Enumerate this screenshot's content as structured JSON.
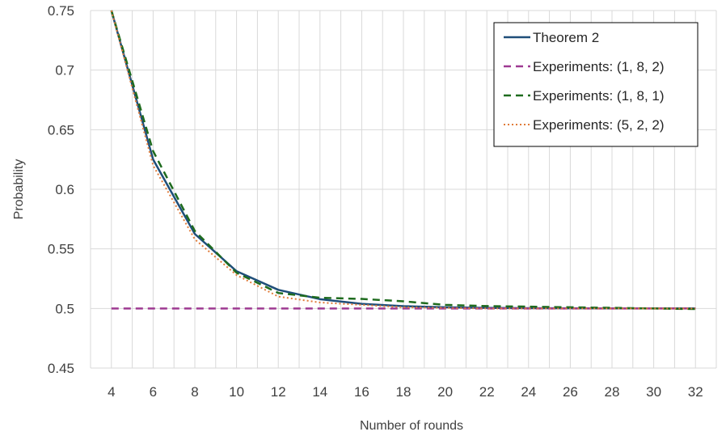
{
  "chart_data": {
    "type": "line",
    "title": "",
    "xlabel": "Number of rounds",
    "ylabel": "Probability",
    "x": [
      4,
      6,
      8,
      10,
      12,
      14,
      16,
      18,
      20,
      22,
      24,
      26,
      28,
      30,
      32
    ],
    "x_ticks": [
      "4",
      "6",
      "8",
      "10",
      "12",
      "14",
      "16",
      "18",
      "20",
      "22",
      "24",
      "26",
      "28",
      "30",
      "32"
    ],
    "xlim": [
      3,
      33
    ],
    "ylim": [
      0.45,
      0.75
    ],
    "y_ticks": [
      "0.45",
      "0.5",
      "0.55",
      "0.6",
      "0.65",
      "0.7",
      "0.75"
    ],
    "grid": "vertical-and-horizontal",
    "legend": "top-right",
    "series": [
      {
        "name": "Theorem 2",
        "color": "#1f4e79",
        "dash": "solid",
        "values": [
          0.75,
          0.625,
          0.5625,
          0.53125,
          0.515625,
          0.507813,
          0.503906,
          0.501953,
          0.500977,
          0.500488,
          0.500244,
          0.500122,
          0.500061,
          0.500031,
          0.500015
        ]
      },
      {
        "name": "Experiments: (1, 8, 2)",
        "color": "#9e3a92",
        "dash": "dashed",
        "values": [
          0.5,
          0.5,
          0.5,
          0.5,
          0.5,
          0.5,
          0.5,
          0.5,
          0.5,
          0.5,
          0.5,
          0.5,
          0.5,
          0.5,
          0.5
        ]
      },
      {
        "name": "Experiments: (1, 8, 1)",
        "color": "#1e6b1e",
        "dash": "dashed",
        "values": [
          0.75,
          0.632,
          0.565,
          0.53,
          0.513,
          0.509,
          0.508,
          0.506,
          0.503,
          0.502,
          0.5015,
          0.501,
          0.5005,
          0.5,
          0.4995
        ]
      },
      {
        "name": "Experiments: (5, 2, 2)",
        "color": "#e07b39",
        "dash": "dotted",
        "values": [
          0.75,
          0.62,
          0.558,
          0.528,
          0.51,
          0.505,
          0.503,
          0.501,
          0.5005,
          0.5,
          0.5,
          0.5,
          0.5,
          0.5,
          0.5
        ]
      }
    ]
  }
}
